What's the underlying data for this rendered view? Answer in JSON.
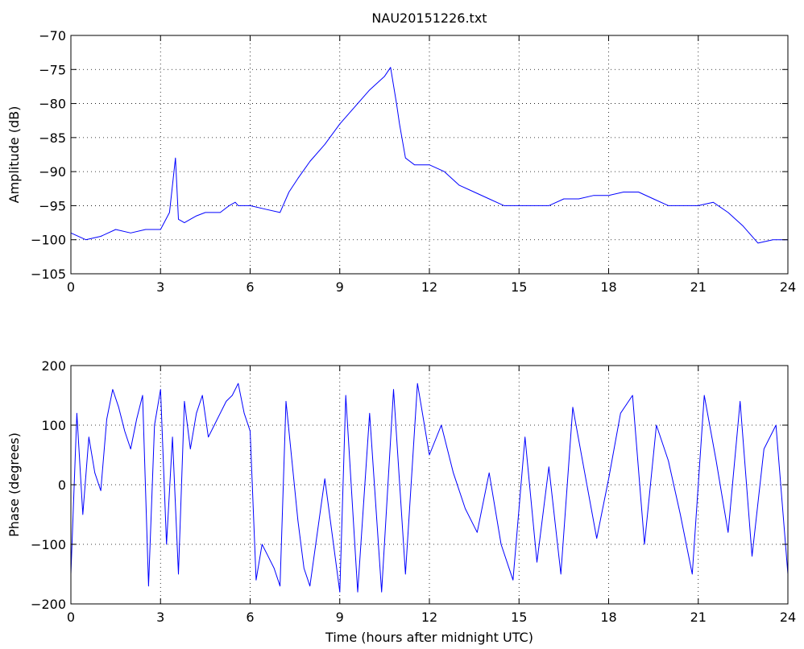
{
  "figure": {
    "title": "NAU20151226.txt",
    "xlabel": "Time (hours after midnight UTC)"
  },
  "chart_data": [
    {
      "type": "line",
      "title": "NAU20151226.txt",
      "xlabel": "",
      "ylabel": "Amplitude (dB)",
      "xlim": [
        0,
        24
      ],
      "ylim": [
        -105,
        -70
      ],
      "xticks": [
        0,
        3,
        6,
        9,
        12,
        15,
        18,
        21,
        24
      ],
      "yticks": [
        -105,
        -100,
        -95,
        -90,
        -85,
        -80,
        -75,
        -70
      ],
      "grid": true,
      "line_color": "#0000ff",
      "series": [
        {
          "x": [
            0,
            0.5,
            1,
            1.5,
            2,
            2.5,
            3,
            3.3,
            3.5,
            3.6,
            3.8,
            4.0,
            4.2,
            4.5,
            5.0,
            5.3,
            5.5,
            5.6,
            6.0,
            6.5,
            7.0,
            7.3,
            7.6,
            8.0,
            8.5,
            9.0,
            9.5,
            10.0,
            10.5,
            10.7,
            10.9,
            11.0,
            11.2,
            11.5,
            12,
            12.5,
            13,
            13.5,
            14,
            14.5,
            15,
            15.5,
            16,
            16.5,
            17,
            17.5,
            18,
            18.5,
            19,
            19.5,
            20,
            20.5,
            21,
            21.5,
            22,
            22.5,
            23,
            23.5,
            24
          ],
          "y": [
            -99,
            -100,
            -99.5,
            -98.5,
            -99,
            -98.5,
            -98.5,
            -96,
            -88,
            -97,
            -97.5,
            -97,
            -96.5,
            -96,
            -96,
            -95,
            -94.5,
            -95,
            -95,
            -95.5,
            -96,
            -93,
            -91,
            -88.5,
            -86,
            -83,
            -80.5,
            -78,
            -76,
            -74.7,
            -80,
            -83,
            -88,
            -89,
            -89,
            -90,
            -92,
            -93,
            -94,
            -95,
            -95,
            -95,
            -95,
            -94,
            -94,
            -93.5,
            -93.5,
            -93,
            -93,
            -94,
            -95,
            -95,
            -95,
            -94.5,
            -96,
            -98,
            -100.5,
            -100,
            -100
          ]
        }
      ]
    },
    {
      "type": "line",
      "title": "",
      "xlabel": "Time (hours after midnight UTC)",
      "ylabel": "Phase (degrees)",
      "xlim": [
        0,
        24
      ],
      "ylim": [
        -200,
        200
      ],
      "xticks": [
        0,
        3,
        6,
        9,
        12,
        15,
        18,
        21,
        24
      ],
      "yticks": [
        -200,
        -100,
        0,
        100,
        200
      ],
      "grid": true,
      "line_color": "#0000ff",
      "series": [
        {
          "x": [
            0,
            0.2,
            0.4,
            0.6,
            0.8,
            1.0,
            1.2,
            1.4,
            1.6,
            1.8,
            2.0,
            2.2,
            2.4,
            2.6,
            2.8,
            3.0,
            3.2,
            3.4,
            3.6,
            3.8,
            4.0,
            4.2,
            4.4,
            4.6,
            4.8,
            5.0,
            5.2,
            5.4,
            5.6,
            5.8,
            6.0,
            6.2,
            6.4,
            6.6,
            6.8,
            7.0,
            7.2,
            7.4,
            7.6,
            7.8,
            8.0,
            8.5,
            9.0,
            9.2,
            9.6,
            10.0,
            10.4,
            10.8,
            11.2,
            11.6,
            12.0,
            12.4,
            12.8,
            13.2,
            13.6,
            14.0,
            14.4,
            14.8,
            15.2,
            15.6,
            16.0,
            16.4,
            16.8,
            17.2,
            17.6,
            18.0,
            18.4,
            18.8,
            19.2,
            19.6,
            20.0,
            20.4,
            20.8,
            21.2,
            21.6,
            22.0,
            22.4,
            22.8,
            23.2,
            23.6,
            24.0
          ],
          "y": [
            -150,
            120,
            -50,
            80,
            20,
            -10,
            110,
            160,
            130,
            90,
            60,
            110,
            150,
            -170,
            100,
            160,
            -100,
            80,
            -150,
            140,
            60,
            120,
            150,
            80,
            100,
            120,
            140,
            150,
            170,
            120,
            90,
            -160,
            -100,
            -120,
            -140,
            -170,
            140,
            40,
            -60,
            -140,
            -170,
            10,
            -180,
            150,
            -180,
            120,
            -180,
            160,
            -150,
            170,
            50,
            100,
            20,
            -40,
            -80,
            20,
            -100,
            -160,
            80,
            -130,
            30,
            -150,
            130,
            20,
            -90,
            10,
            120,
            150,
            -100,
            100,
            40,
            -50,
            -150,
            150,
            40,
            -80,
            140,
            -120,
            60,
            100,
            -150
          ]
        }
      ]
    }
  ]
}
